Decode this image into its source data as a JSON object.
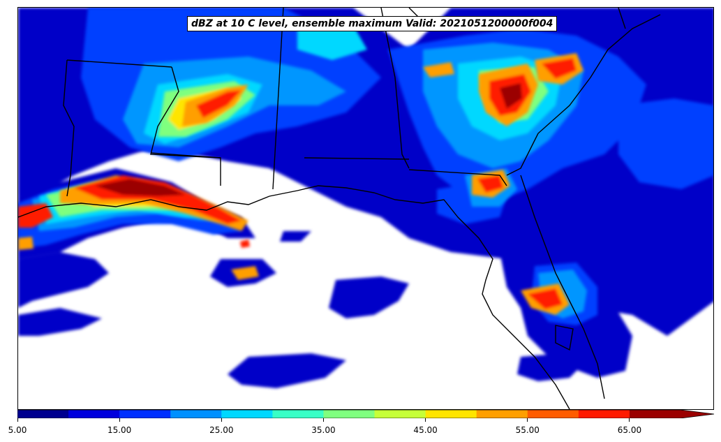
{
  "title": "dBZ at 10 C level, ensemble maximum Valid: 2021051200000f004",
  "colorbar": {
    "min": 5,
    "max": 70,
    "step": 5,
    "extend": "max",
    "colors": [
      "#00008f",
      "#0000dd",
      "#0030ff",
      "#0090ff",
      "#00d8ff",
      "#38ffc6",
      "#7fff7f",
      "#c6ff38",
      "#ffe500",
      "#ff9f00",
      "#ff5c00",
      "#ff1a00",
      "#9b0000"
    ],
    "tick_labels": [
      "5.00",
      "15.00",
      "25.00",
      "35.00",
      "45.00",
      "55.00",
      "65.00"
    ]
  },
  "reflectivity_palette": {
    "background_low": "#0000c8",
    "mid_low": "#0040ff",
    "light": "#0096ff",
    "cyan": "#00d8ff",
    "green": "#7fff7f",
    "yellow": "#ffe500",
    "orange": "#ff9f00",
    "red": "#ff1a00",
    "dark_red": "#9b0000"
  }
}
